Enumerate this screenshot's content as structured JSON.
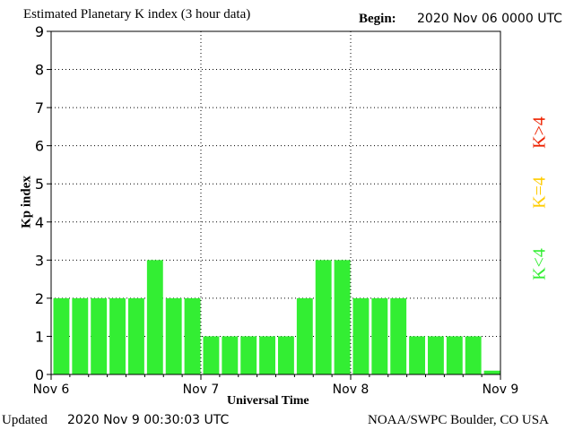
{
  "header": {
    "title": "Estimated Planetary K index (3 hour data)",
    "begin_label": "Begin:",
    "begin_value": "2020 Nov 06 0000 UTC"
  },
  "footer": {
    "updated_label": "Updated",
    "updated_value": "2020 Nov  9 00:30:03 UTC",
    "credit": "NOAA/SWPC Boulder, CO USA"
  },
  "legend": [
    {
      "label": "K<4",
      "color": "#33ee33"
    },
    {
      "label": "K=4",
      "color": "#ffcc00"
    },
    {
      "label": "K>4",
      "color": "#ee2200"
    }
  ],
  "chart_data": {
    "type": "bar",
    "ylabel": "Kp index",
    "xlabel": "Universal Time",
    "ylim": [
      0,
      9
    ],
    "yticks": [
      "0",
      "1",
      "2",
      "3",
      "4",
      "5",
      "6",
      "7",
      "8",
      "9"
    ],
    "day_labels": [
      "Nov 6",
      "Nov 7",
      "Nov 8",
      "Nov 9"
    ],
    "bars_per_day": 8,
    "values": [
      2,
      2,
      2,
      2,
      2,
      3,
      2,
      2,
      1,
      1,
      1,
      1,
      1,
      2,
      3,
      3,
      2,
      2,
      2,
      1,
      1,
      1,
      1,
      0.1
    ],
    "bar_color": "#33ee33",
    "grid": "dotted"
  }
}
